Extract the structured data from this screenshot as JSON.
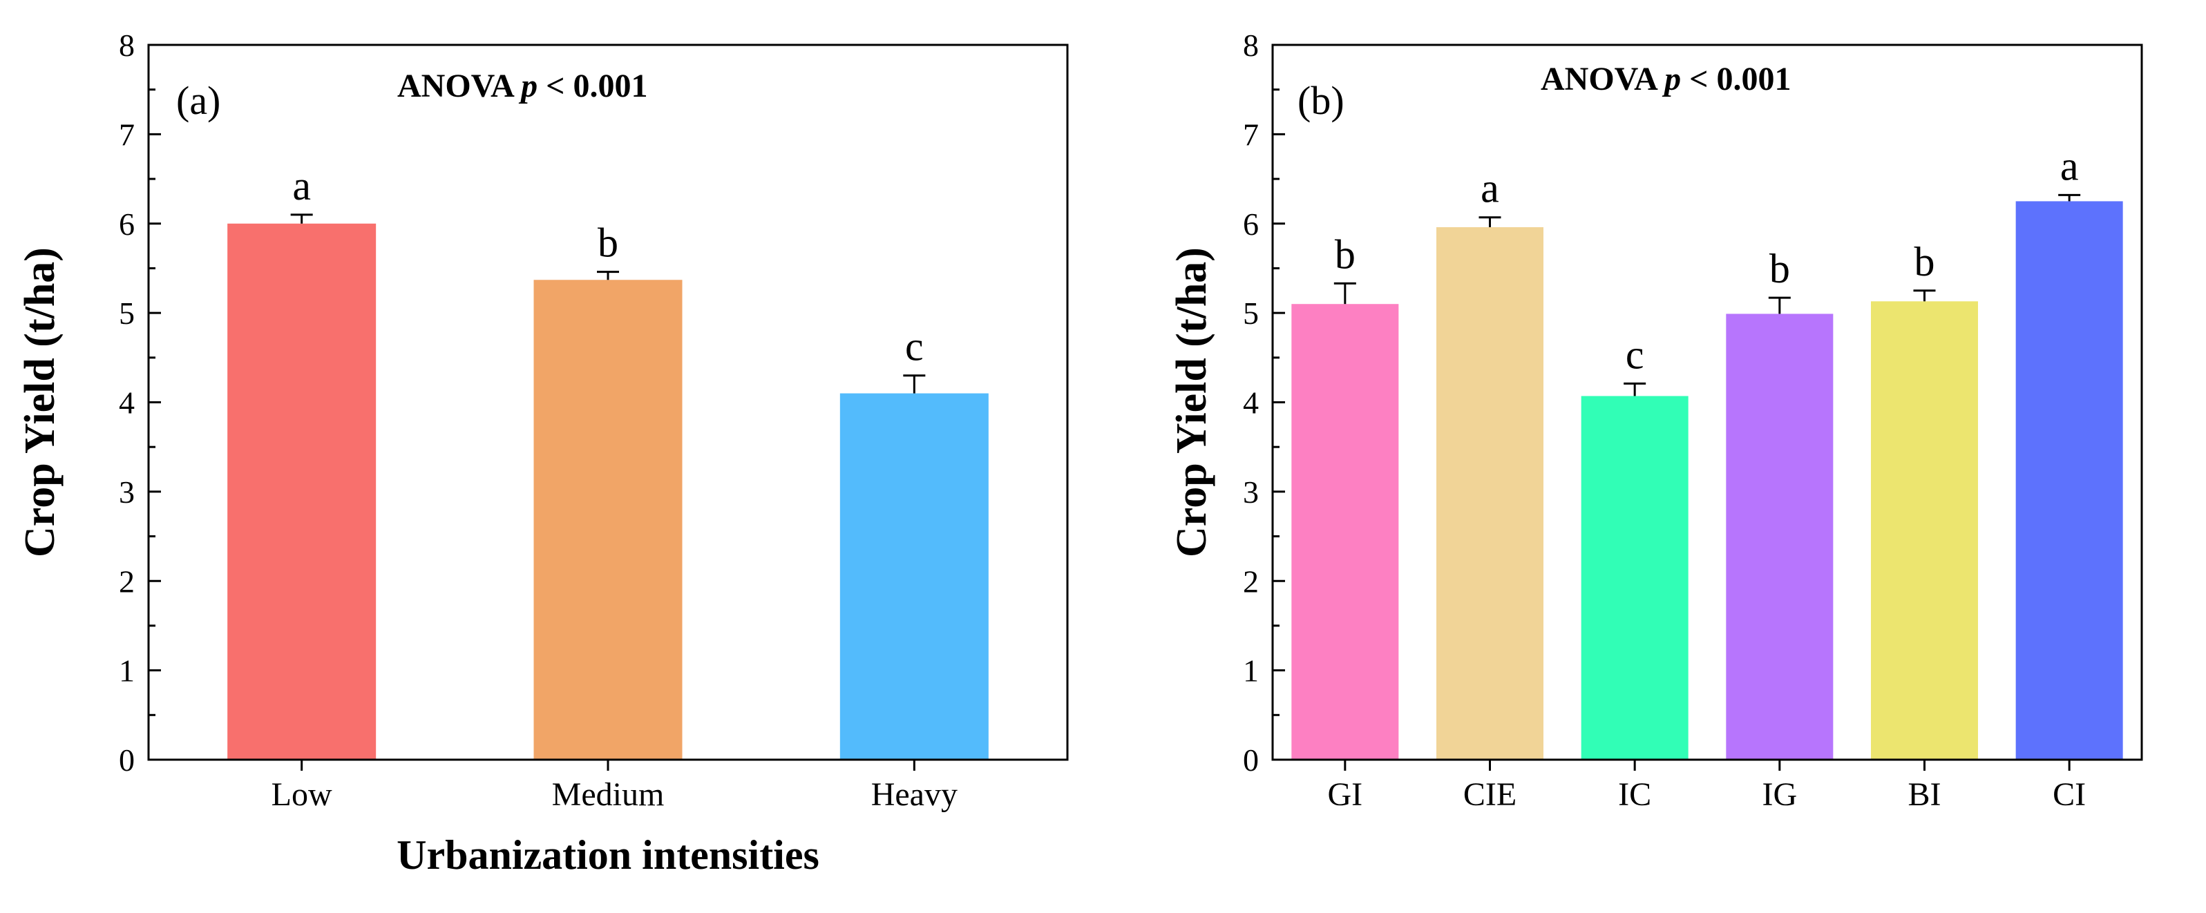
{
  "chart_data": [
    {
      "type": "bar",
      "panel_label": "(a)",
      "annotation": {
        "prefix": "ANOVA ",
        "p": "p",
        "suffix": " < 0.001"
      },
      "xlabel": "Urbanization intensities",
      "ylabel": "Crop Yield (t/ha)",
      "ylim": [
        0,
        8
      ],
      "yticks": [
        "0",
        "1",
        "2",
        "3",
        "4",
        "5",
        "6",
        "7",
        "8"
      ],
      "grid": false,
      "categories": [
        "Low",
        "Medium",
        "Heavy"
      ],
      "values": [
        6.0,
        5.37,
        4.1
      ],
      "errors": [
        0.1,
        0.09,
        0.2
      ],
      "letters": [
        "a",
        "b",
        "c"
      ],
      "colors": [
        "#f8706d",
        "#f1a567",
        "#53bbfc"
      ]
    },
    {
      "type": "bar",
      "panel_label": "(b)",
      "annotation": {
        "prefix": "ANOVA ",
        "p": "p",
        "suffix": " < 0.001"
      },
      "xlabel": "",
      "ylabel": "Crop Yield (t/ha)",
      "ylim": [
        0,
        8
      ],
      "yticks": [
        "0",
        "1",
        "2",
        "3",
        "4",
        "5",
        "6",
        "7",
        "8"
      ],
      "grid": false,
      "categories": [
        "GI",
        "CIE",
        "IC",
        "IG",
        "BI",
        "CI"
      ],
      "values": [
        5.1,
        5.96,
        4.07,
        4.99,
        5.13,
        6.25
      ],
      "errors": [
        0.23,
        0.11,
        0.14,
        0.18,
        0.12,
        0.07
      ],
      "letters": [
        "b",
        "a",
        "c",
        "b",
        "b",
        "a"
      ],
      "colors": [
        "#fd80c2",
        "#f1d497",
        "#31feb6",
        "#b775fd",
        "#ece56f",
        "#5d72fd"
      ]
    }
  ]
}
